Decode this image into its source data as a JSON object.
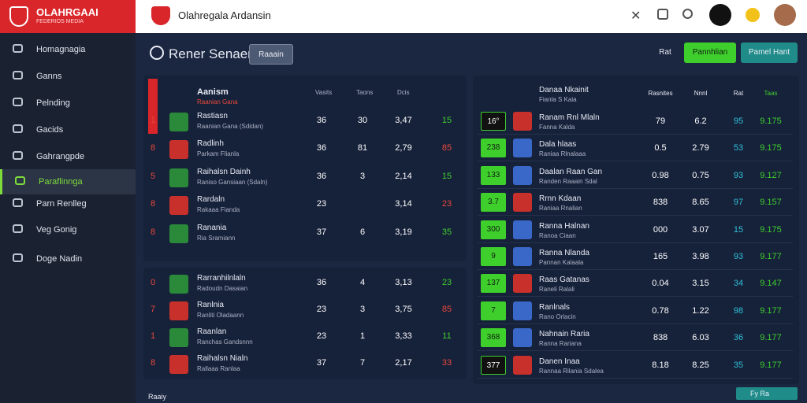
{
  "brand": {
    "title": "OLAHRGAAI",
    "subtitle": "FEDERIOS MEDIA"
  },
  "topbar": {
    "title": "Olahregala Ardansin"
  },
  "sidebar": [
    "Hоmagnagia",
    "Ganns",
    "Pelnding",
    "Gacids",
    "Gahrangpde",
    "Paraflinnga",
    "Parn Renlleg",
    "Veg Gonig",
    "Doge Nadin"
  ],
  "toolbar": {
    "title": "Rener Senaer",
    "button": "Raaain",
    "actions": [
      "Rat",
      "Pannhlian",
      "Pamel Hant"
    ]
  },
  "left_table": {
    "header": "Aanism",
    "header_sub": "Raanian Gana",
    "columns": [
      "Vasits",
      "Taons",
      "Dcis"
    ],
    "groups": [
      [
        {
          "rank": "1",
          "name": "Rastiasn",
          "sub": "Raanian Gana (Sdidan)",
          "values": [
            "36",
            "30",
            "3,47",
            "15"
          ]
        },
        {
          "rank": "8",
          "name": "Radlinh",
          "sub": "Parkam Flianla",
          "values": [
            "36",
            "81",
            "2,79",
            "85"
          ]
        },
        {
          "rank": "5",
          "name": "Raihalsn Dainh",
          "sub": "Raniso Gansiaan (Sdaln)",
          "values": [
            "36",
            "3",
            "2,14",
            "15"
          ]
        },
        {
          "rank": "8",
          "name": "Rardaln",
          "sub": "Rakaaa Fianda",
          "values": [
            "23",
            "",
            "3,14",
            "23"
          ]
        },
        {
          "rank": "8",
          "name": "Ranania",
          "sub": "Ria Sramiann",
          "values": [
            "37",
            "6",
            "3,19",
            "35"
          ]
        }
      ],
      [
        {
          "rank": "0",
          "name": "Rarranhilnlaln",
          "sub": "Radoudn Dasaian",
          "values": [
            "36",
            "4",
            "3,13",
            "23"
          ]
        },
        {
          "rank": "7",
          "name": "Ranlnia",
          "sub": "Ranliti Oladaann",
          "values": [
            "23",
            "3",
            "3,75",
            "85"
          ]
        },
        {
          "rank": "1",
          "name": "Raanlan",
          "sub": "Ranchas Gandsnnn",
          "values": [
            "23",
            "1",
            "3,33",
            "11"
          ]
        },
        {
          "rank": "8",
          "name": "Raihalsn Nialn",
          "sub": "Rallaaa Ranlaa",
          "values": [
            "37",
            "7",
            "2,17",
            "33"
          ]
        }
      ]
    ]
  },
  "right_table": {
    "header": "Danaa Nkainit",
    "header_sub": "Fianla S Kaia",
    "columns": [
      "Rasnites",
      "Nnnl",
      "Rat",
      "Taas"
    ],
    "rows": [
      {
        "badge": "16°",
        "name": "Ranam Rnl Mlaln",
        "sub": "Fanna Kalda",
        "values": [
          "79",
          "6.2",
          "95",
          "9.175"
        ]
      },
      {
        "badge": "238",
        "name": "Dala hlaas",
        "sub": "Raniaa Rlnalaaa",
        "values": [
          "0.5",
          "2.79",
          "53",
          "9.175"
        ]
      },
      {
        "badge": "133",
        "name": "Daalan Raan Gan",
        "sub": "Randen Raaain Sdal",
        "values": [
          "0.98",
          "0.75",
          "93",
          "9.127"
        ]
      },
      {
        "badge": "3.7",
        "name": "Rrnn Kdaan",
        "sub": "Raniaa Rnalian",
        "values": [
          "838",
          "8.65",
          "97",
          "9.157"
        ]
      },
      {
        "badge": "300",
        "name": "Ranna Halnan",
        "sub": "Ranoa Ciaan",
        "values": [
          "000",
          "3.07",
          "15",
          "9.175"
        ]
      },
      {
        "badge": "9",
        "name": "Ranna Nlanda",
        "sub": "Pannan Kalaala",
        "values": [
          "165",
          "3.98",
          "93",
          "9.177"
        ]
      },
      {
        "badge": "137",
        "name": "Raas Gatanas",
        "sub": "Raneli Ralali",
        "values": [
          "0.04",
          "3.15",
          "34",
          "9.147"
        ]
      },
      {
        "badge": "7",
        "name": "Ranlnals",
        "sub": "Rano Orlacin",
        "values": [
          "0.78",
          "1.22",
          "98",
          "9.177"
        ]
      },
      {
        "badge": "368",
        "name": "Nahnain Raria",
        "sub": "Ranna Rariana",
        "values": [
          "838",
          "6.03",
          "36",
          "9.177"
        ]
      },
      {
        "badge": "377",
        "name": "Danen Inaa",
        "sub": "Rannaa Rilania Sdalea",
        "values": [
          "8.18",
          "8.25",
          "35",
          "9.177"
        ]
      }
    ]
  },
  "footer": {
    "left": "Raaiy",
    "right": "Fy Ra"
  }
}
